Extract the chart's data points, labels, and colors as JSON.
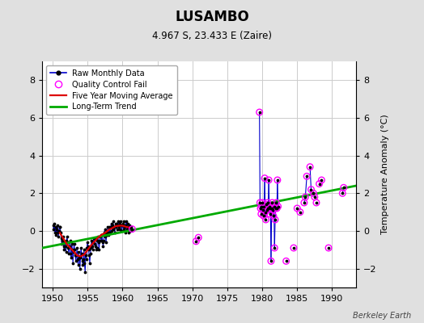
{
  "title": "LUSAMBO",
  "subtitle": "4.967 S, 23.433 E (Zaire)",
  "ylabel": "Temperature Anomaly (°C)",
  "watermark": "Berkeley Earth",
  "xlim": [
    1948.5,
    1993.5
  ],
  "ylim": [
    -3.0,
    9.0
  ],
  "yticks": [
    -2,
    0,
    2,
    4,
    6,
    8
  ],
  "xticks": [
    1950,
    1955,
    1960,
    1965,
    1970,
    1975,
    1980,
    1985,
    1990
  ],
  "bg_color": "#e0e0e0",
  "plot_bg_color": "#ffffff",
  "raw_x": [
    1950.04,
    1950.13,
    1950.21,
    1950.29,
    1950.38,
    1950.46,
    1950.54,
    1950.63,
    1950.71,
    1950.79,
    1950.88,
    1950.96,
    1951.04,
    1951.13,
    1951.21,
    1951.29,
    1951.38,
    1951.46,
    1951.54,
    1951.63,
    1951.71,
    1951.79,
    1951.88,
    1951.96,
    1952.04,
    1952.13,
    1952.21,
    1952.29,
    1952.38,
    1952.46,
    1952.54,
    1952.63,
    1952.71,
    1952.79,
    1952.88,
    1952.96,
    1953.04,
    1953.13,
    1953.21,
    1953.29,
    1953.38,
    1953.46,
    1953.54,
    1953.63,
    1953.71,
    1953.79,
    1953.88,
    1953.96,
    1954.04,
    1954.13,
    1954.21,
    1954.29,
    1954.38,
    1954.46,
    1954.54,
    1954.63,
    1954.71,
    1954.79,
    1954.88,
    1954.96,
    1955.04,
    1955.13,
    1955.21,
    1955.29,
    1955.38,
    1955.46,
    1955.54,
    1955.63,
    1955.71,
    1955.79,
    1955.88,
    1955.96,
    1956.04,
    1956.13,
    1956.21,
    1956.29,
    1956.38,
    1956.46,
    1956.54,
    1956.63,
    1956.71,
    1956.79,
    1956.88,
    1956.96,
    1957.04,
    1957.13,
    1957.21,
    1957.29,
    1957.38,
    1957.46,
    1957.54,
    1957.63,
    1957.71,
    1957.79,
    1957.88,
    1957.96,
    1958.04,
    1958.13,
    1958.21,
    1958.29,
    1958.38,
    1958.46,
    1958.54,
    1958.63,
    1958.71,
    1958.79,
    1958.88,
    1958.96,
    1959.04,
    1959.13,
    1959.21,
    1959.29,
    1959.38,
    1959.46,
    1959.54,
    1959.63,
    1959.71,
    1959.79,
    1959.88,
    1959.96,
    1960.04,
    1960.13,
    1960.21,
    1960.29,
    1960.38,
    1960.46,
    1960.54,
    1960.63,
    1960.71,
    1960.79,
    1960.88,
    1960.96,
    1961.04,
    1961.13,
    1961.21,
    1961.29
  ],
  "raw_y": [
    0.3,
    0.1,
    0.4,
    -0.1,
    0.2,
    -0.2,
    0.1,
    -0.1,
    0.3,
    -0.3,
    0.0,
    0.2,
    0.2,
    -0.1,
    -0.4,
    -0.7,
    -0.5,
    -0.3,
    -0.8,
    -1.0,
    -0.6,
    -0.8,
    -1.1,
    -0.5,
    -0.3,
    -0.6,
    -0.9,
    -1.2,
    -0.8,
    -0.5,
    -1.2,
    -1.4,
    -0.7,
    -1.0,
    -1.7,
    -1.1,
    -0.7,
    -1.0,
    -1.3,
    -1.6,
    -1.3,
    -0.9,
    -1.5,
    -1.8,
    -1.1,
    -1.4,
    -2.0,
    -1.4,
    -0.9,
    -1.2,
    -1.6,
    -1.8,
    -1.5,
    -1.0,
    -1.7,
    -2.2,
    -1.3,
    -1.5,
    -0.9,
    -0.6,
    -0.8,
    -1.0,
    -1.3,
    -1.7,
    -1.2,
    -0.9,
    -0.5,
    -0.8,
    -1.0,
    -0.6,
    -0.4,
    -0.7,
    -0.4,
    -0.8,
    -1.0,
    -0.9,
    -0.5,
    -0.3,
    -0.6,
    -1.0,
    -0.5,
    -0.3,
    -0.2,
    -0.5,
    -0.2,
    -0.6,
    -0.8,
    -0.5,
    -0.1,
    0.1,
    -0.3,
    -0.6,
    -0.2,
    -0.1,
    0.2,
    -0.2,
    -0.1,
    0.2,
    -0.1,
    0.2,
    0.4,
    0.0,
    0.3,
    0.5,
    0.1,
    0.2,
    -0.1,
    0.4,
    0.2,
    0.4,
    0.1,
    0.3,
    0.5,
    0.2,
    0.4,
    0.1,
    0.5,
    0.3,
    0.0,
    0.3,
    0.4,
    0.1,
    0.5,
    0.2,
    -0.1,
    0.3,
    0.5,
    0.1,
    0.4,
    0.2,
    -0.1,
    0.1,
    0.3,
    0.0,
    0.2,
    0.1
  ],
  "qc_x": [
    1961.38,
    1970.54,
    1970.88,
    1979.63,
    1979.71,
    1979.79,
    1979.88,
    1979.96,
    1980.04,
    1980.13,
    1980.21,
    1980.29,
    1980.38,
    1980.46,
    1980.54,
    1980.63,
    1980.71,
    1980.79,
    1980.88,
    1980.96,
    1981.04,
    1981.13,
    1981.21,
    1981.29,
    1981.38,
    1981.46,
    1981.54,
    1981.63,
    1981.71,
    1981.79,
    1981.88,
    1981.96,
    1982.04,
    1982.13,
    1982.21,
    1982.29,
    1983.46,
    1984.54,
    1985.04,
    1985.46,
    1986.04,
    1986.21,
    1986.42,
    1986.88,
    1987.04,
    1987.38,
    1987.54,
    1987.79,
    1988.21,
    1988.54,
    1989.54,
    1991.54,
    1991.71
  ],
  "qc_y": [
    0.1,
    -0.55,
    -0.35,
    6.3,
    1.5,
    1.2,
    0.9,
    1.3,
    1.5,
    1.1,
    0.8,
    1.3,
    2.8,
    1.0,
    0.6,
    1.4,
    1.1,
    1.5,
    1.2,
    2.7,
    1.3,
    0.9,
    1.2,
    -1.6,
    1.2,
    1.5,
    1.1,
    0.8,
    1.3,
    -0.9,
    0.6,
    1.2,
    1.5,
    1.2,
    2.7,
    1.3,
    -1.6,
    -0.9,
    1.2,
    1.0,
    1.5,
    1.8,
    2.9,
    3.4,
    2.2,
    2.0,
    1.8,
    1.5,
    2.5,
    2.7,
    -0.9,
    2.0,
    2.3
  ],
  "mavg_x": [
    1951.0,
    1951.5,
    1952.0,
    1952.5,
    1953.0,
    1953.5,
    1954.0,
    1954.5,
    1955.0,
    1955.5,
    1956.0,
    1956.5,
    1957.0,
    1957.5,
    1958.0,
    1958.5,
    1959.0,
    1959.5,
    1960.0,
    1960.5,
    1961.0
  ],
  "mavg_y": [
    -0.1,
    -0.4,
    -0.7,
    -0.9,
    -1.1,
    -1.3,
    -1.35,
    -1.25,
    -1.0,
    -0.75,
    -0.55,
    -0.35,
    -0.2,
    -0.1,
    0.05,
    0.15,
    0.25,
    0.28,
    0.28,
    0.22,
    0.18
  ],
  "trend_x": [
    1948.5,
    1993.5
  ],
  "trend_y": [
    -0.9,
    2.4
  ],
  "colors": {
    "raw_line": "#0000cc",
    "raw_dot": "#000000",
    "qc_circle": "#ff00ff",
    "qc_dot": "#000000",
    "moving_avg": "#dd0000",
    "trend": "#00aa00",
    "grid": "#cccccc"
  }
}
